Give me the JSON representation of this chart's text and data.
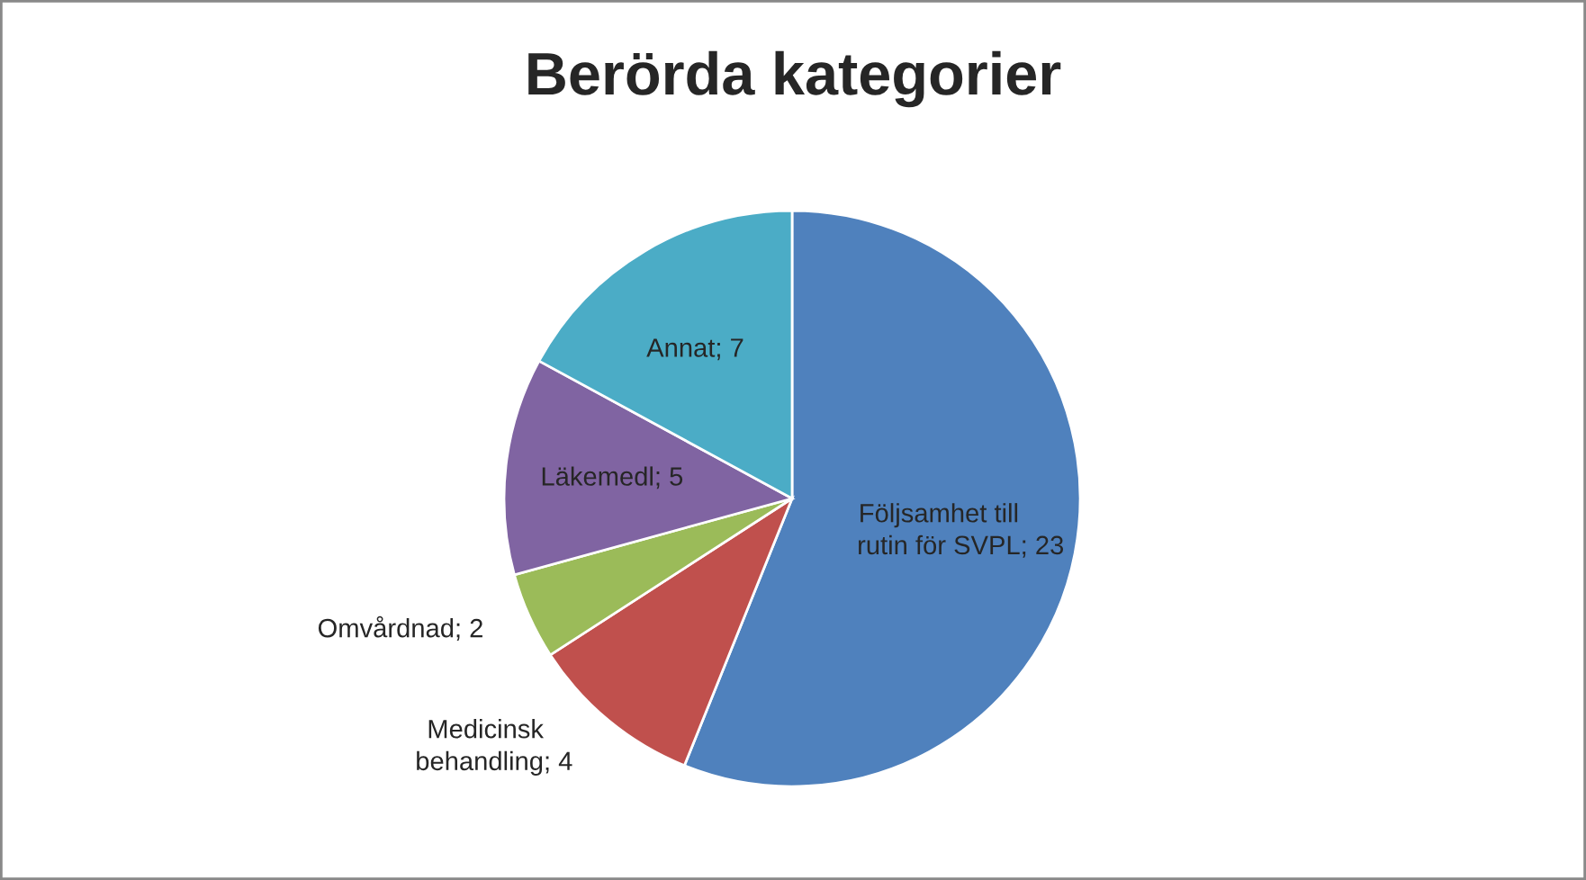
{
  "chart_data": {
    "type": "pie",
    "title": "Berörda kategorier",
    "categories": [
      "Följsamhet till rutin för SVPL",
      "Medicinsk behandling",
      "Omvårdnad",
      "Läkemedl",
      "Annat"
    ],
    "values": [
      23,
      4,
      2,
      5,
      7
    ],
    "colors": [
      "#4f81bd",
      "#c0504d",
      "#9bbb59",
      "#8064a2",
      "#4bacc6"
    ],
    "value_labels": [
      "; 23",
      "; 4",
      "; 2",
      "; 5",
      "; 7"
    ],
    "legend": false
  }
}
